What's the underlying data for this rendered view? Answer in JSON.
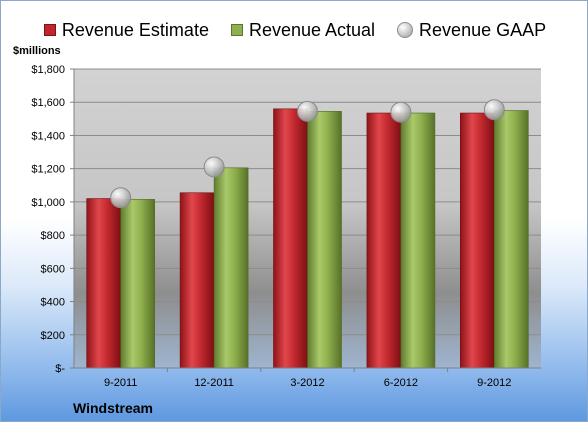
{
  "legend": {
    "estimate_label": "Revenue Estimate",
    "actual_label": "Revenue Actual",
    "gaap_label": "Revenue GAAP"
  },
  "unit_label": "$millions",
  "company": "Windstream",
  "colors": {
    "estimate": "#c0262c",
    "actual": "#8fb04e",
    "gaap": "#b8b8b8",
    "plot_background": "#c8c8c8",
    "gridline": "#8c8c8c"
  },
  "chart_data": {
    "type": "bar",
    "title": "",
    "xlabel": "",
    "ylabel": "$millions",
    "ylim": [
      0,
      1800
    ],
    "grid": true,
    "legend_position": "top",
    "yticks": [
      0,
      200,
      400,
      600,
      800,
      1000,
      1200,
      1400,
      1600,
      1800
    ],
    "ytick_labels": [
      "$-",
      "$200",
      "$400",
      "$600",
      "$800",
      "$1,000",
      "$1,200",
      "$1,400",
      "$1,600",
      "$1,800"
    ],
    "categories": [
      "9-2011",
      "12-2011",
      "3-2012",
      "6-2012",
      "9-2012"
    ],
    "series": [
      {
        "name": "Revenue Estimate",
        "type": "bar",
        "values": [
          1020,
          1055,
          1560,
          1535,
          1535
        ]
      },
      {
        "name": "Revenue Actual",
        "type": "bar",
        "values": [
          1015,
          1205,
          1545,
          1535,
          1550
        ]
      },
      {
        "name": "Revenue GAAP",
        "type": "scatter",
        "values": [
          1025,
          1210,
          1545,
          1540,
          1555
        ]
      }
    ]
  }
}
